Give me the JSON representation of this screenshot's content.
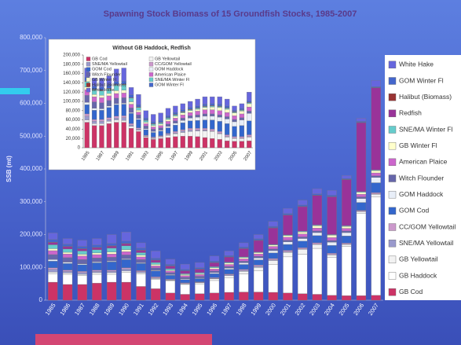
{
  "chart_data": [
    {
      "type": "bar",
      "stacked": true,
      "title": "Spawning Stock Biomass of 15 Groundfish Stocks, 1985-2007",
      "y_label": "SSB (mt)",
      "legend": "right",
      "grid": false,
      "categories": [
        "1985",
        "1986",
        "1987",
        "1988",
        "1989",
        "1990",
        "1991",
        "1992",
        "1993",
        "1994",
        "1995",
        "1996",
        "1997",
        "1998",
        "1999",
        "2000",
        "2001",
        "2002",
        "2003",
        "2004",
        "2005",
        "2006",
        "2007"
      ],
      "ylim": [
        0,
        800000
      ],
      "yticks": [
        0,
        {
          "value": 100000,
          "label": "100,000"
        },
        {
          "value": 200000,
          "label": "200,000"
        },
        {
          "value": 300000,
          "label": "300,000"
        },
        {
          "value": 400000,
          "label": "400,000"
        },
        {
          "value": 500000,
          "label": "500,000"
        },
        {
          "value": 600000,
          "label": "600,000"
        },
        {
          "value": 700000,
          "label": "700,000"
        },
        {
          "value": 800000,
          "label": "800,000"
        }
      ],
      "series": [
        {
          "name": "GB Cod",
          "color": "#cc3366",
          "values": [
            55000,
            48000,
            48000,
            52000,
            55000,
            55000,
            42000,
            35000,
            22000,
            18000,
            20000,
            22000,
            24000,
            25000,
            25000,
            24000,
            22000,
            20000,
            18000,
            15000,
            14000,
            14000,
            15000
          ]
        },
        {
          "name": "GB Haddock",
          "color": "#ffffff",
          "values": [
            26000,
            31000,
            27000,
            27000,
            24000,
            30000,
            38000,
            28000,
            37000,
            30000,
            30000,
            38000,
            45000,
            55000,
            65000,
            85000,
            110000,
            120000,
            140000,
            115000,
            150000,
            250000,
            300000
          ]
        },
        {
          "name": "GB Yellowtail",
          "color": "#f2f2f2",
          "values": [
            5000,
            4000,
            4000,
            5000,
            5000,
            4000,
            4000,
            3000,
            2000,
            2000,
            3000,
            5000,
            6000,
            8000,
            10000,
            12000,
            14000,
            15000,
            12000,
            8000,
            6000,
            6000,
            8000
          ]
        },
        {
          "name": "SNE/MA Yellowtail",
          "color": "#9999cc",
          "values": [
            8000,
            5000,
            5000,
            4000,
            4000,
            6000,
            3000,
            2000,
            1000,
            1000,
            1000,
            2000,
            2000,
            3000,
            3000,
            2000,
            2000,
            1000,
            1000,
            1000,
            1000,
            1000,
            1000
          ]
        },
        {
          "name": "CC/GOM Yellowtail",
          "color": "#cc99cc",
          "values": [
            5000,
            4000,
            4000,
            4000,
            4000,
            4000,
            3000,
            3000,
            2000,
            2000,
            2000,
            2000,
            3000,
            3000,
            4000,
            4000,
            4000,
            4000,
            4000,
            4000,
            3000,
            3000,
            4000
          ]
        },
        {
          "name": "GOM Cod",
          "color": "#3366cc",
          "values": [
            20000,
            20000,
            20000,
            22000,
            25000,
            25000,
            22000,
            18000,
            12000,
            10000,
            10000,
            12000,
            14000,
            15000,
            16000,
            17000,
            18000,
            20000,
            22000,
            24000,
            22000,
            24000,
            30000
          ]
        },
        {
          "name": "GOM Haddock",
          "color": "#e8eef8",
          "values": [
            5000,
            4000,
            3000,
            3000,
            2000,
            2000,
            2000,
            2000,
            2000,
            2000,
            2000,
            3000,
            4000,
            5000,
            6000,
            7000,
            8000,
            8000,
            9000,
            10000,
            10000,
            12000,
            16000
          ]
        },
        {
          "name": "Witch Flounder",
          "color": "#6666aa",
          "values": [
            15000,
            14000,
            13000,
            12000,
            12000,
            12000,
            10000,
            8000,
            6000,
            5000,
            5000,
            5000,
            5000,
            5000,
            5000,
            5000,
            5000,
            5000,
            5000,
            5000,
            5000,
            5000,
            5000
          ]
        },
        {
          "name": "American Plaice",
          "color": "#cc66cc",
          "values": [
            12000,
            11000,
            11000,
            10000,
            10000,
            10000,
            8000,
            6000,
            5000,
            5000,
            5000,
            6000,
            6000,
            7000,
            7000,
            8000,
            9000,
            9000,
            9000,
            9000,
            8000,
            8000,
            9000
          ]
        },
        {
          "name": "GB Winter Fl",
          "color": "#ffffcc",
          "values": [
            6000,
            5000,
            5000,
            5000,
            6000,
            6000,
            5000,
            4000,
            3000,
            3000,
            3000,
            4000,
            4000,
            4000,
            4000,
            4000,
            5000,
            6000,
            7000,
            7000,
            6000,
            6000,
            7000
          ]
        },
        {
          "name": "SNE/MA Winter Fl",
          "color": "#66cccc",
          "values": [
            12000,
            10000,
            10000,
            10000,
            12000,
            12000,
            8000,
            6000,
            4000,
            3000,
            3000,
            3000,
            3000,
            2000,
            2000,
            2000,
            2000,
            2000,
            2000,
            2000,
            2000,
            2000,
            2000
          ]
        },
        {
          "name": "Redfish",
          "color": "#993399",
          "values": [
            7000,
            7000,
            6000,
            6000,
            6000,
            6000,
            7000,
            7000,
            8000,
            8000,
            10000,
            12000,
            15000,
            25000,
            35000,
            50000,
            60000,
            75000,
            90000,
            115000,
            140000,
            210000,
            250000
          ]
        },
        {
          "name": "Halibut (Biomass)",
          "color": "#993333",
          "values": [
            1000,
            1000,
            1000,
            1000,
            1000,
            1000,
            1000,
            1000,
            1000,
            1000,
            1000,
            1000,
            1000,
            1000,
            1000,
            1000,
            1000,
            1000,
            1000,
            1000,
            1000,
            1000,
            1000
          ]
        },
        {
          "name": "GOM Winter Fl",
          "color": "#4466cc",
          "values": [
            8000,
            7000,
            7000,
            7000,
            7000,
            7000,
            6000,
            5000,
            4000,
            4000,
            4000,
            4000,
            4000,
            4000,
            4000,
            4000,
            4000,
            4000,
            4000,
            4000,
            3000,
            3000,
            3000
          ]
        },
        {
          "name": "White Hake",
          "color": "#6666dd",
          "values": [
            20000,
            17000,
            19000,
            20000,
            27000,
            28000,
            16000,
            22000,
            16000,
            16000,
            16000,
            16000,
            14000,
            13000,
            13000,
            15000,
            16000,
            15000,
            16000,
            15000,
            9000,
            10000,
            19000
          ]
        }
      ]
    },
    {
      "type": "bar",
      "stacked": true,
      "title": "Without GB Haddock, Redfish",
      "legend": "upper left",
      "grid": false,
      "categories": [
        "1985",
        null,
        "1987",
        null,
        "1989",
        null,
        "1991",
        null,
        "1993",
        null,
        "1995",
        null,
        "1997",
        null,
        "1999",
        null,
        "2001",
        null,
        "2003",
        null,
        "2005",
        null,
        "2007"
      ],
      "ylim": [
        0,
        200000
      ],
      "yticks": [
        0,
        {
          "value": 20000,
          "label": "20,000"
        },
        {
          "value": 40000,
          "label": "40,000"
        },
        {
          "value": 60000,
          "label": "60,000"
        },
        {
          "value": 80000,
          "label": "80,000"
        },
        {
          "value": 100000,
          "label": "100,000"
        },
        {
          "value": 120000,
          "label": "120,000"
        },
        {
          "value": 140000,
          "label": "140,000"
        },
        {
          "value": 160000,
          "label": "160,000"
        },
        {
          "value": 180000,
          "label": "180,000"
        },
        {
          "value": 200000,
          "label": "200,000"
        }
      ],
      "series": [
        {
          "name": "GB Cod",
          "color": "#cc3366",
          "values": [
            55000,
            48000,
            48000,
            52000,
            55000,
            55000,
            42000,
            35000,
            22000,
            18000,
            20000,
            22000,
            24000,
            25000,
            25000,
            24000,
            22000,
            20000,
            18000,
            15000,
            14000,
            14000,
            15000
          ]
        },
        {
          "name": "GB Yellowtail",
          "color": "#f2f2f2",
          "values": [
            5000,
            4000,
            4000,
            5000,
            5000,
            4000,
            4000,
            3000,
            2000,
            2000,
            3000,
            5000,
            6000,
            8000,
            10000,
            12000,
            14000,
            15000,
            12000,
            8000,
            6000,
            6000,
            8000
          ]
        },
        {
          "name": "SNE/MA Yellowtail",
          "color": "#9999cc",
          "values": [
            8000,
            5000,
            5000,
            4000,
            4000,
            6000,
            3000,
            2000,
            1000,
            1000,
            1000,
            2000,
            2000,
            3000,
            3000,
            2000,
            2000,
            1000,
            1000,
            1000,
            1000,
            1000,
            1000
          ]
        },
        {
          "name": "CC/GOM Yellowtail",
          "color": "#cc99cc",
          "values": [
            5000,
            4000,
            4000,
            4000,
            4000,
            4000,
            3000,
            3000,
            2000,
            2000,
            2000,
            2000,
            3000,
            3000,
            4000,
            4000,
            4000,
            4000,
            4000,
            4000,
            3000,
            3000,
            4000
          ]
        },
        {
          "name": "GOM Cod",
          "color": "#3366cc",
          "values": [
            20000,
            20000,
            20000,
            22000,
            25000,
            25000,
            22000,
            18000,
            12000,
            10000,
            10000,
            12000,
            14000,
            15000,
            16000,
            17000,
            18000,
            20000,
            22000,
            24000,
            22000,
            24000,
            30000
          ]
        },
        {
          "name": "GOM Haddock",
          "color": "#e8eef8",
          "values": [
            5000,
            4000,
            3000,
            3000,
            2000,
            2000,
            2000,
            2000,
            2000,
            2000,
            2000,
            3000,
            4000,
            5000,
            6000,
            7000,
            8000,
            8000,
            9000,
            10000,
            10000,
            12000,
            16000
          ]
        },
        {
          "name": "Witch Flounder",
          "color": "#6666aa",
          "values": [
            15000,
            14000,
            13000,
            12000,
            12000,
            12000,
            10000,
            8000,
            6000,
            5000,
            5000,
            5000,
            5000,
            5000,
            5000,
            5000,
            5000,
            5000,
            5000,
            5000,
            5000,
            5000,
            5000
          ]
        },
        {
          "name": "American Plaice",
          "color": "#cc66cc",
          "values": [
            12000,
            11000,
            11000,
            10000,
            10000,
            10000,
            8000,
            6000,
            5000,
            5000,
            5000,
            6000,
            6000,
            7000,
            7000,
            8000,
            9000,
            9000,
            9000,
            9000,
            8000,
            8000,
            9000
          ]
        },
        {
          "name": "GB Winter Fl",
          "color": "#ffffcc",
          "values": [
            6000,
            5000,
            5000,
            5000,
            6000,
            6000,
            5000,
            4000,
            3000,
            3000,
            3000,
            4000,
            4000,
            4000,
            4000,
            4000,
            5000,
            6000,
            7000,
            7000,
            6000,
            6000,
            7000
          ]
        },
        {
          "name": "SNE/MA Winter Fl",
          "color": "#66cccc",
          "values": [
            12000,
            10000,
            10000,
            10000,
            12000,
            12000,
            8000,
            6000,
            4000,
            3000,
            3000,
            3000,
            3000,
            2000,
            2000,
            2000,
            2000,
            2000,
            2000,
            2000,
            2000,
            2000,
            2000
          ]
        },
        {
          "name": "Halibut (Biomass)",
          "color": "#993333",
          "values": [
            1000,
            1000,
            1000,
            1000,
            1000,
            1000,
            1000,
            1000,
            1000,
            1000,
            1000,
            1000,
            1000,
            1000,
            1000,
            1000,
            1000,
            1000,
            1000,
            1000,
            1000,
            1000,
            1000
          ]
        },
        {
          "name": "GOM Winter Fl",
          "color": "#4466cc",
          "values": [
            8000,
            7000,
            7000,
            7000,
            7000,
            7000,
            6000,
            5000,
            4000,
            4000,
            4000,
            4000,
            4000,
            4000,
            4000,
            4000,
            4000,
            4000,
            4000,
            4000,
            3000,
            3000,
            3000
          ]
        },
        {
          "name": "White Hake",
          "color": "#6666dd",
          "values": [
            20000,
            17000,
            19000,
            20000,
            27000,
            28000,
            16000,
            22000,
            16000,
            16000,
            16000,
            16000,
            14000,
            13000,
            13000,
            15000,
            16000,
            15000,
            16000,
            15000,
            9000,
            10000,
            19000
          ]
        }
      ]
    }
  ]
}
